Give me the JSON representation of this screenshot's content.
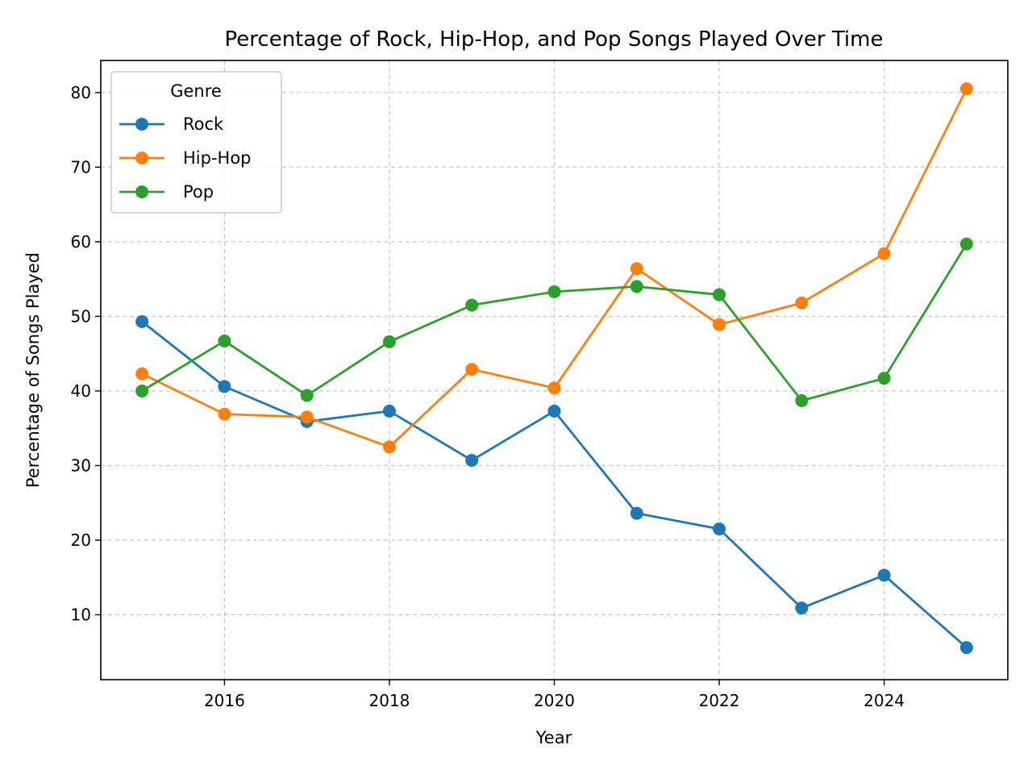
{
  "chart_data": {
    "type": "line",
    "title": "Percentage of Rock, Hip-Hop, and Pop Songs Played Over Time",
    "xlabel": "Year",
    "ylabel": "Percentage of Songs Played",
    "x": [
      2015,
      2016,
      2017,
      2018,
      2019,
      2020,
      2021,
      2022,
      2023,
      2024,
      2025
    ],
    "xlim": [
      2014.5,
      2025.5
    ],
    "ylim": [
      1.3,
      84.3
    ],
    "xticks": [
      2016,
      2018,
      2020,
      2022,
      2024
    ],
    "yticks": [
      10,
      20,
      30,
      40,
      50,
      60,
      70,
      80
    ],
    "grid": true,
    "legend": {
      "title": "Genre",
      "placement": "upper-left"
    },
    "series": [
      {
        "name": "Rock",
        "color": "#1f77b4",
        "values": [
          49.3,
          40.6,
          35.9,
          37.3,
          30.7,
          37.3,
          23.6,
          21.5,
          10.9,
          15.3,
          5.6
        ]
      },
      {
        "name": "Hip-Hop",
        "color": "#ff7f0e",
        "values": [
          42.3,
          36.9,
          36.5,
          32.5,
          42.9,
          40.4,
          56.4,
          48.9,
          51.8,
          58.4,
          80.5
        ]
      },
      {
        "name": "Pop",
        "color": "#2ca02c",
        "values": [
          40.0,
          46.7,
          39.4,
          46.6,
          51.5,
          53.3,
          54.0,
          52.9,
          38.7,
          41.7,
          59.7
        ]
      }
    ]
  }
}
